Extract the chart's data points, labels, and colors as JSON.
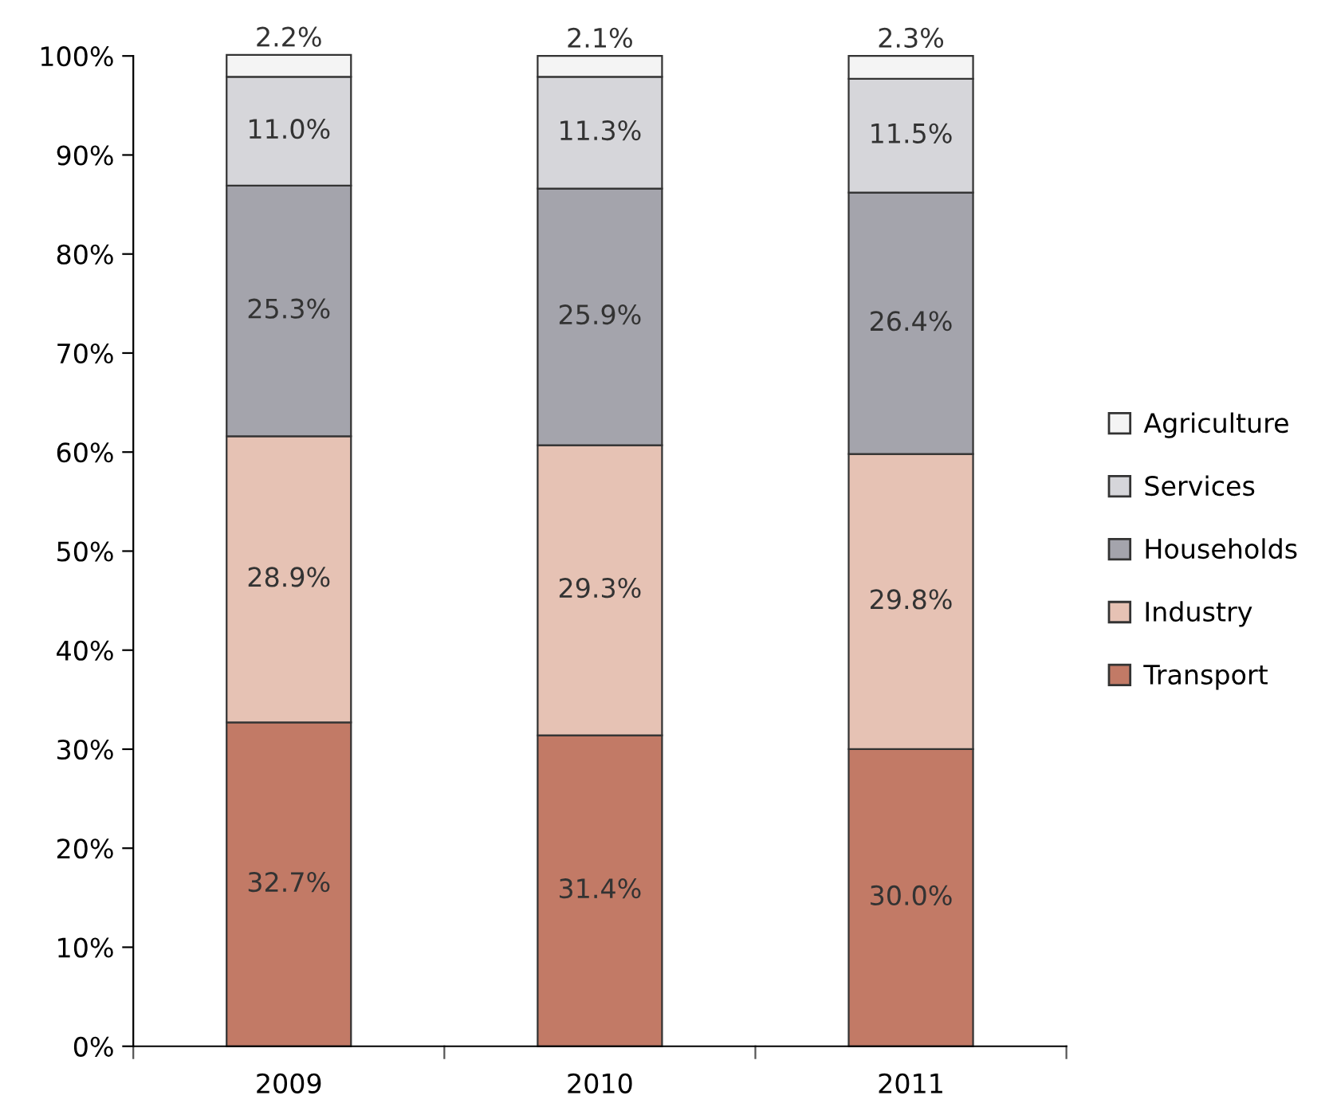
{
  "chart_data": {
    "type": "bar",
    "stacked": true,
    "categories": [
      "2009",
      "2010",
      "2011"
    ],
    "series": [
      {
        "name": "Transport",
        "color": "#c27a66",
        "values": [
          32.7,
          31.4,
          30.0
        ],
        "value_labels": [
          "32.7%",
          "31.4%",
          "30.0%"
        ]
      },
      {
        "name": "Industry",
        "color": "#e6c2b4",
        "values": [
          28.9,
          29.3,
          29.8
        ],
        "value_labels": [
          "28.9%",
          "29.3%",
          "29.8%"
        ]
      },
      {
        "name": "Households",
        "color": "#a4a4ac",
        "values": [
          25.3,
          25.9,
          26.4
        ],
        "value_labels": [
          "25.3%",
          "25.9%",
          "26.4%"
        ]
      },
      {
        "name": "Services",
        "color": "#d6d6da",
        "values": [
          11.0,
          11.3,
          11.5
        ],
        "value_labels": [
          "11.0%",
          "11.3%",
          "11.5%"
        ]
      },
      {
        "name": "Agriculture",
        "color": "#f4f4f4",
        "values": [
          2.2,
          2.1,
          2.3
        ],
        "value_labels": [
          "2.2%",
          "2.1%",
          "2.3%"
        ]
      }
    ],
    "ylim": [
      0,
      100
    ],
    "yticks": [
      {
        "value": 0,
        "label": "0%"
      },
      {
        "value": 10,
        "label": "10%"
      },
      {
        "value": 20,
        "label": "20%"
      },
      {
        "value": 30,
        "label": "30%"
      },
      {
        "value": 40,
        "label": "40%"
      },
      {
        "value": 50,
        "label": "50%"
      },
      {
        "value": 60,
        "label": "60%"
      },
      {
        "value": 70,
        "label": "70%"
      },
      {
        "value": 80,
        "label": "80%"
      },
      {
        "value": 90,
        "label": "90%"
      },
      {
        "value": 100,
        "label": "100%"
      }
    ],
    "grid": false,
    "legend": "right"
  }
}
